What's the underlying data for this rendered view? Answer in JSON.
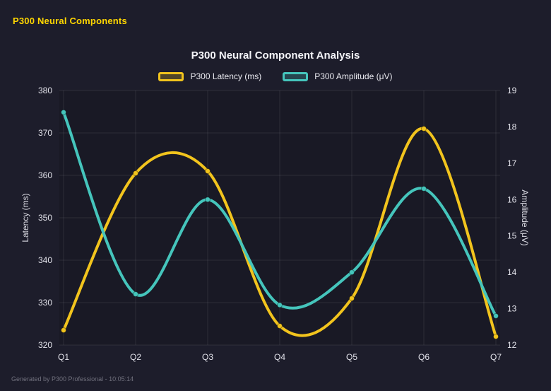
{
  "header": {
    "title": "P300 Neural Components"
  },
  "footer": {
    "text": "Generated by P300 Professional - 10:05:14"
  },
  "chart_data": {
    "type": "line",
    "title": "P300 Neural Component Analysis",
    "categories": [
      "Q1",
      "Q2",
      "Q3",
      "Q4",
      "Q5",
      "Q6",
      "Q7"
    ],
    "series": [
      {
        "name": "P300 Latency (ms)",
        "axis": "left",
        "color": "#f2c41d",
        "values": [
          323.5,
          360.5,
          361,
          324.5,
          331,
          371,
          322
        ]
      },
      {
        "name": "P300 Amplitude (μV)",
        "axis": "right",
        "color": "#45c5bc",
        "values": [
          18.4,
          13.4,
          16.0,
          13.1,
          14.0,
          16.3,
          12.8
        ]
      }
    ],
    "axes": {
      "left": {
        "label": "Latency (ms)",
        "min": 320,
        "max": 380,
        "step": 10
      },
      "right": {
        "label": "Amplitude (μV)",
        "min": 12,
        "max": 19,
        "step": 1
      }
    },
    "grid": true,
    "legend_position": "top",
    "colors": {
      "background": "#1d1d2b",
      "grid": "rgba(255,255,255,0.09)",
      "tick_text": "#e2e2ea",
      "title_text": "#f4f4f8",
      "header_accent": "#ffd600"
    }
  }
}
